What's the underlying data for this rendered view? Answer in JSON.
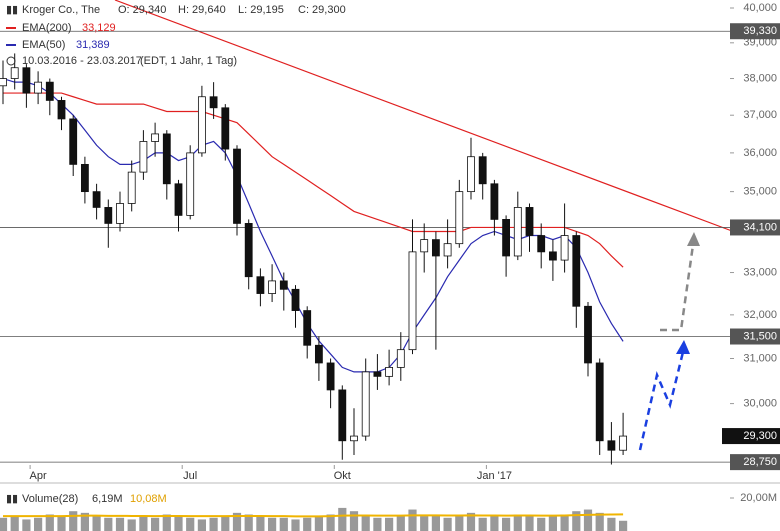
{
  "chart_data": {
    "type": "candlestick",
    "title": "Kroger Co., The",
    "ohlc_labels": [
      "O: 29,340",
      "H: 29,640",
      "L: 29,195",
      "C: 29,300"
    ],
    "period": "10.03.2016 - 23.03.2017",
    "period_note": "(EDT, 1 Jahr, 1 Tag)",
    "log_scale": true,
    "categories": [
      null,
      null,
      null,
      "Apr",
      null,
      null,
      null,
      null,
      null,
      null,
      null,
      null,
      null,
      null,
      null,
      null,
      "Jul",
      null,
      null,
      null,
      null,
      null,
      null,
      null,
      null,
      null,
      null,
      null,
      null,
      "Okt",
      null,
      null,
      null,
      null,
      null,
      null,
      null,
      null,
      null,
      null,
      null,
      null,
      "Jan '17",
      null,
      null,
      null,
      null,
      null,
      null,
      null,
      null,
      null,
      null,
      null
    ],
    "open": [
      37800,
      38000,
      38300,
      37600,
      37900,
      37400,
      36900,
      35700,
      35000,
      34600,
      34200,
      34700,
      35500,
      36300,
      36500,
      35200,
      34400,
      36000,
      37500,
      37200,
      36100,
      34200,
      32900,
      32500,
      32800,
      32600,
      32100,
      31300,
      30900,
      30300,
      29200,
      29300,
      30700,
      30600,
      30800,
      31200,
      33500,
      33800,
      33400,
      33700,
      35000,
      35900,
      35200,
      34300,
      33400,
      34600,
      33900,
      33500,
      33300,
      33900,
      32200,
      30900,
      29200,
      29000
    ],
    "high": [
      38500,
      38700,
      38400,
      38200,
      38000,
      37500,
      37000,
      35900,
      35200,
      34800,
      35000,
      35800,
      36600,
      36800,
      36600,
      35300,
      36200,
      37800,
      37900,
      37300,
      36200,
      34300,
      33100,
      33200,
      33000,
      32700,
      32200,
      31500,
      31000,
      30400,
      29900,
      31000,
      31100,
      31200,
      31600,
      34300,
      34200,
      34000,
      34300,
      35300,
      36400,
      36000,
      35300,
      34400,
      35000,
      34700,
      34200,
      33800,
      34700,
      34000,
      32300,
      31000,
      29600,
      29800
    ],
    "low": [
      37300,
      37700,
      37200,
      37300,
      37000,
      36600,
      35400,
      34700,
      34300,
      33600,
      34000,
      34500,
      35300,
      35900,
      34800,
      34000,
      34300,
      35900,
      36900,
      35800,
      33900,
      32600,
      32200,
      32300,
      32100,
      31700,
      31000,
      30500,
      29900,
      28800,
      28900,
      29200,
      30300,
      30400,
      30500,
      31100,
      33000,
      31200,
      33100,
      33600,
      34800,
      34800,
      33900,
      32900,
      33300,
      33500,
      33100,
      32800,
      33000,
      31700,
      30600,
      28900,
      28700,
      28900
    ],
    "close": [
      38000,
      38300,
      37600,
      37900,
      37400,
      36900,
      35700,
      35000,
      34600,
      34200,
      34700,
      35500,
      36300,
      36500,
      35200,
      34400,
      36000,
      37500,
      37200,
      36100,
      34200,
      32900,
      32500,
      32800,
      32600,
      32100,
      31300,
      30900,
      30300,
      29200,
      29300,
      30700,
      30600,
      30800,
      31200,
      33500,
      33800,
      33400,
      33700,
      35000,
      35900,
      35200,
      34300,
      33400,
      34600,
      33900,
      33500,
      33300,
      33900,
      32200,
      30900,
      29200,
      29000,
      29300
    ],
    "series": [
      {
        "name": "EMA(200)",
        "last": "33,129",
        "color": "#e02020",
        "values": [
          37600,
          37600,
          37600,
          37600,
          37600,
          37600,
          37500,
          37400,
          37300,
          37300,
          37300,
          37300,
          37300,
          37200,
          37100,
          37100,
          37100,
          37100,
          37000,
          36900,
          36800,
          36500,
          36200,
          35900,
          35700,
          35500,
          35300,
          35100,
          34900,
          34700,
          34500,
          34400,
          34300,
          34200,
          34100,
          34000,
          34000,
          34000,
          34000,
          34000,
          34100,
          34100,
          34100,
          34100,
          34100,
          34100,
          34100,
          34100,
          34100,
          34000,
          33900,
          33700,
          33400,
          33129
        ]
      },
      {
        "name": "EMA(50)",
        "last": "31,389",
        "color": "#2a2ab0",
        "values": [
          38000,
          37900,
          37900,
          37800,
          37600,
          37300,
          37000,
          36600,
          36200,
          35900,
          35700,
          35700,
          35800,
          36000,
          36000,
          35800,
          35900,
          36200,
          36300,
          36000,
          35400,
          34700,
          34000,
          33400,
          32800,
          32300,
          31800,
          31400,
          31100,
          30800,
          30700,
          30700,
          30700,
          30800,
          31100,
          31600,
          32000,
          32400,
          32900,
          33300,
          33700,
          33900,
          34000,
          33900,
          33800,
          33900,
          33900,
          33800,
          33900,
          33600,
          33000,
          32300,
          31800,
          31389
        ]
      }
    ],
    "ylim": [
      28690,
      40000
    ],
    "yticks": [
      {
        "value": 40000,
        "label": "40,000"
      },
      {
        "value": 39000,
        "label": "39,000"
      },
      {
        "value": 38000,
        "label": "38,000"
      },
      {
        "value": 37000,
        "label": "37,000"
      },
      {
        "value": 36000,
        "label": "36,000"
      },
      {
        "value": 35000,
        "label": "35,000"
      },
      {
        "value": 33000,
        "label": "33,000"
      },
      {
        "value": 32000,
        "label": "32,000"
      },
      {
        "value": 31000,
        "label": "31,000"
      },
      {
        "value": 30000,
        "label": "30,000"
      }
    ],
    "levels": [
      {
        "value": 39330,
        "label": "39,330"
      },
      {
        "value": 34100,
        "label": "34,100"
      },
      {
        "value": 31500,
        "label": "31,500"
      },
      {
        "value": 28750,
        "label": "28,750"
      }
    ],
    "last_price": {
      "value": 29300,
      "label": "29,300"
    },
    "volume": {
      "name": "Volume(28)",
      "last": "6,19M",
      "avg_last": "10,08M",
      "color": "#999999",
      "avg_color": "#f0b400",
      "values": [
        8,
        9,
        7,
        8,
        10,
        9,
        12,
        11,
        9,
        8,
        8,
        7,
        9,
        8,
        10,
        9,
        8,
        7,
        8,
        9,
        11,
        10,
        9,
        8,
        8,
        7,
        8,
        9,
        10,
        14,
        12,
        9,
        8,
        8,
        9,
        13,
        9,
        10,
        8,
        9,
        11,
        8,
        9,
        8,
        10,
        9,
        8,
        9,
        10,
        12,
        13,
        11,
        8,
        6.19
      ],
      "avg": [
        9,
        9,
        9,
        9,
        9,
        9,
        9.2,
        9.3,
        9.3,
        9.2,
        9.2,
        9.1,
        9.1,
        9,
        9.1,
        9.1,
        9,
        9,
        9,
        9,
        9.1,
        9.1,
        9.1,
        9,
        9,
        8.9,
        8.9,
        8.9,
        9,
        9.3,
        9.4,
        9.4,
        9.3,
        9.3,
        9.3,
        9.5,
        9.5,
        9.5,
        9.4,
        9.4,
        9.5,
        9.4,
        9.4,
        9.3,
        9.4,
        9.4,
        9.3,
        9.3,
        9.4,
        9.6,
        9.8,
        9.9,
        10,
        10.08
      ],
      "ylim": [
        0,
        20
      ],
      "yticks": [
        {
          "value": 20,
          "label": "20,00M"
        }
      ]
    }
  }
}
